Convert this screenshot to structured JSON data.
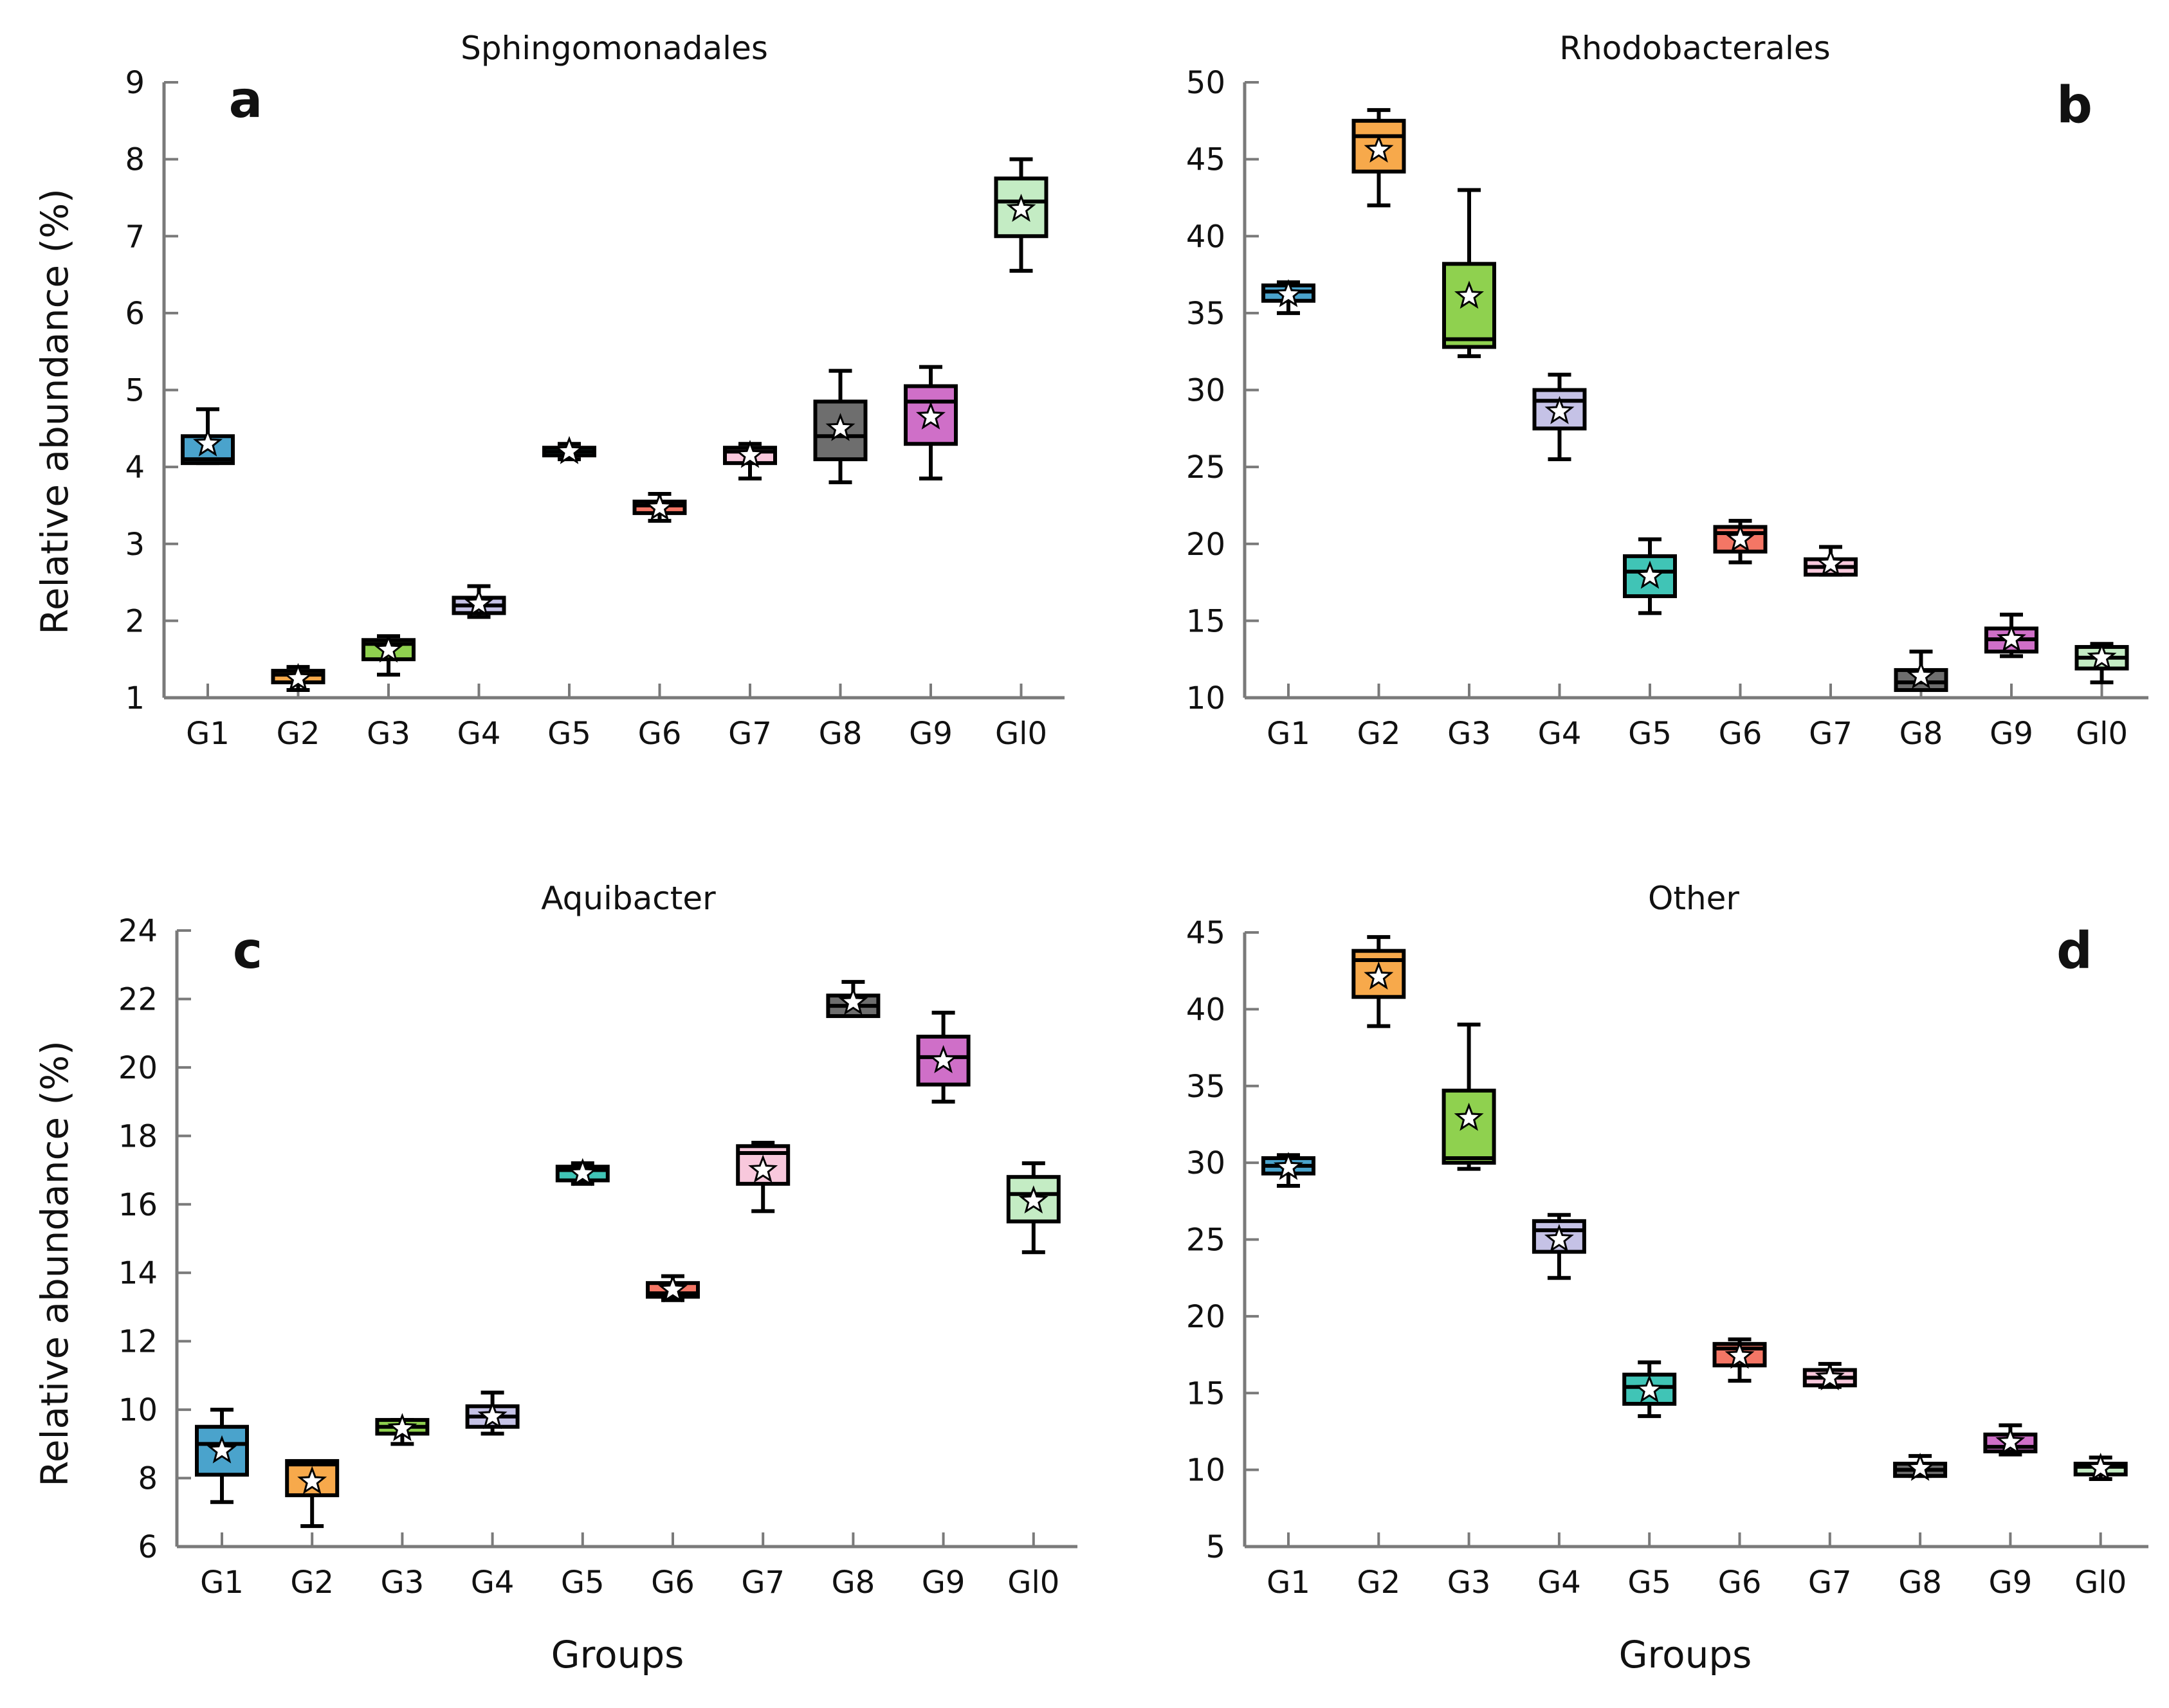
{
  "figure": {
    "group_colors": [
      "#4aa3cc",
      "#f7a94b",
      "#8fd14f",
      "#c5c2e6",
      "#40c4b6",
      "#f47665",
      "#f8c8dc",
      "#6e6e6e",
      "#cf6fc8",
      "#c4ecc4"
    ],
    "xlabel": "Groups",
    "ylabel": "Relative abundance (%)"
  },
  "chart_data": [
    {
      "type": "box",
      "panel": "a",
      "title": "Sphingomonadales",
      "xlabel": "",
      "ylabel": "Relative abundance (%)",
      "categories": [
        "G1",
        "G2",
        "G3",
        "G4",
        "G5",
        "G6",
        "G7",
        "G8",
        "G9",
        "Gl0"
      ],
      "ylim": [
        1,
        9
      ],
      "yticks": [
        1,
        2,
        3,
        4,
        5,
        6,
        7,
        8,
        9
      ],
      "boxes": [
        {
          "min": 4.05,
          "q1": 4.05,
          "median": 4.1,
          "q3": 4.4,
          "max": 4.75,
          "mean": 4.3
        },
        {
          "min": 1.1,
          "q1": 1.2,
          "median": 1.3,
          "q3": 1.35,
          "max": 1.4,
          "mean": 1.25
        },
        {
          "min": 1.3,
          "q1": 1.5,
          "median": 1.7,
          "q3": 1.75,
          "max": 1.8,
          "mean": 1.62
        },
        {
          "min": 2.05,
          "q1": 2.1,
          "median": 2.2,
          "q3": 2.3,
          "max": 2.45,
          "mean": 2.22
        },
        {
          "min": 4.1,
          "q1": 4.15,
          "median": 4.2,
          "q3": 4.25,
          "max": 4.3,
          "mean": 4.2
        },
        {
          "min": 3.3,
          "q1": 3.4,
          "median": 3.5,
          "q3": 3.55,
          "max": 3.65,
          "mean": 3.47
        },
        {
          "min": 3.85,
          "q1": 4.05,
          "median": 4.2,
          "q3": 4.25,
          "max": 4.3,
          "mean": 4.15
        },
        {
          "min": 3.8,
          "q1": 4.1,
          "median": 4.4,
          "q3": 4.85,
          "max": 5.25,
          "mean": 4.5
        },
        {
          "min": 3.85,
          "q1": 4.3,
          "median": 4.85,
          "q3": 5.05,
          "max": 5.3,
          "mean": 4.65
        },
        {
          "min": 6.55,
          "q1": 7.0,
          "median": 7.45,
          "q3": 7.75,
          "max": 8.0,
          "mean": 7.35
        }
      ]
    },
    {
      "type": "box",
      "panel": "b",
      "title": "Rhodobacterales",
      "xlabel": "",
      "ylabel": "",
      "categories": [
        "G1",
        "G2",
        "G3",
        "G4",
        "G5",
        "G6",
        "G7",
        "G8",
        "G9",
        "Gl0"
      ],
      "ylim": [
        10,
        50
      ],
      "yticks": [
        10,
        15,
        20,
        25,
        30,
        35,
        40,
        45,
        50
      ],
      "boxes": [
        {
          "min": 35.0,
          "q1": 35.8,
          "median": 36.4,
          "q3": 36.8,
          "max": 37.0,
          "mean": 36.2
        },
        {
          "min": 42.0,
          "q1": 44.2,
          "median": 46.5,
          "q3": 47.5,
          "max": 48.2,
          "mean": 45.6
        },
        {
          "min": 32.2,
          "q1": 32.8,
          "median": 33.3,
          "q3": 38.2,
          "max": 43.0,
          "mean": 36.1
        },
        {
          "min": 25.5,
          "q1": 27.5,
          "median": 29.3,
          "q3": 30.0,
          "max": 31.0,
          "mean": 28.6
        },
        {
          "min": 15.5,
          "q1": 16.6,
          "median": 18.2,
          "q3": 19.2,
          "max": 20.3,
          "mean": 17.9
        },
        {
          "min": 18.8,
          "q1": 19.5,
          "median": 20.7,
          "q3": 21.1,
          "max": 21.5,
          "mean": 20.3
        },
        {
          "min": 18.0,
          "q1": 18.0,
          "median": 18.5,
          "q3": 19.0,
          "max": 19.8,
          "mean": 18.7
        },
        {
          "min": 10.5,
          "q1": 10.5,
          "median": 11.0,
          "q3": 11.8,
          "max": 13.0,
          "mean": 11.4
        },
        {
          "min": 12.7,
          "q1": 13.0,
          "median": 13.8,
          "q3": 14.5,
          "max": 15.4,
          "mean": 13.8
        },
        {
          "min": 11.0,
          "q1": 11.9,
          "median": 12.6,
          "q3": 13.3,
          "max": 13.5,
          "mean": 12.6
        }
      ]
    },
    {
      "type": "box",
      "panel": "c",
      "title": "Aquibacter",
      "xlabel": "Groups",
      "ylabel": "Relative abundance (%)",
      "categories": [
        "G1",
        "G2",
        "G3",
        "G4",
        "G5",
        "G6",
        "G7",
        "G8",
        "G9",
        "Gl0"
      ],
      "ylim": [
        6,
        24
      ],
      "yticks": [
        6,
        8,
        10,
        12,
        14,
        16,
        18,
        20,
        22,
        24
      ],
      "boxes": [
        {
          "min": 7.3,
          "q1": 8.1,
          "median": 9.0,
          "q3": 9.5,
          "max": 10.0,
          "mean": 8.8
        },
        {
          "min": 6.6,
          "q1": 7.5,
          "median": 8.4,
          "q3": 8.5,
          "max": 8.5,
          "mean": 7.9
        },
        {
          "min": 9.0,
          "q1": 9.3,
          "median": 9.5,
          "q3": 9.7,
          "max": 9.7,
          "mean": 9.45
        },
        {
          "min": 9.3,
          "q1": 9.5,
          "median": 9.8,
          "q3": 10.1,
          "max": 10.5,
          "mean": 9.8
        },
        {
          "min": 16.6,
          "q1": 16.7,
          "median": 17.0,
          "q3": 17.1,
          "max": 17.2,
          "mean": 16.9
        },
        {
          "min": 13.2,
          "q1": 13.3,
          "median": 13.4,
          "q3": 13.7,
          "max": 13.9,
          "mean": 13.5
        },
        {
          "min": 15.8,
          "q1": 16.6,
          "median": 17.5,
          "q3": 17.7,
          "max": 17.8,
          "mean": 17.0
        },
        {
          "min": 21.5,
          "q1": 21.5,
          "median": 21.8,
          "q3": 22.1,
          "max": 22.5,
          "mean": 21.9
        },
        {
          "min": 19.0,
          "q1": 19.5,
          "median": 20.3,
          "q3": 20.9,
          "max": 21.6,
          "mean": 20.2
        },
        {
          "min": 14.6,
          "q1": 15.5,
          "median": 16.3,
          "q3": 16.8,
          "max": 17.2,
          "mean": 16.1
        }
      ]
    },
    {
      "type": "box",
      "panel": "d",
      "title": "Other",
      "xlabel": "Groups",
      "ylabel": "",
      "categories": [
        "G1",
        "G2",
        "G3",
        "G4",
        "G5",
        "G6",
        "G7",
        "G8",
        "G9",
        "Gl0"
      ],
      "ylim": [
        5,
        45
      ],
      "yticks": [
        5,
        10,
        15,
        20,
        25,
        30,
        35,
        40,
        45
      ],
      "boxes": [
        {
          "min": 28.5,
          "q1": 29.3,
          "median": 29.8,
          "q3": 30.3,
          "max": 30.5,
          "mean": 29.7
        },
        {
          "min": 38.9,
          "q1": 40.8,
          "median": 43.2,
          "q3": 43.8,
          "max": 44.7,
          "mean": 42.1
        },
        {
          "min": 29.6,
          "q1": 30.0,
          "median": 30.3,
          "q3": 34.7,
          "max": 39.0,
          "mean": 32.9
        },
        {
          "min": 22.5,
          "q1": 24.2,
          "median": 25.6,
          "q3": 26.2,
          "max": 26.6,
          "mean": 25.0
        },
        {
          "min": 13.5,
          "q1": 14.3,
          "median": 15.4,
          "q3": 16.2,
          "max": 17.0,
          "mean": 15.2
        },
        {
          "min": 15.8,
          "q1": 16.8,
          "median": 17.9,
          "q3": 18.2,
          "max": 18.5,
          "mean": 17.4
        },
        {
          "min": 15.4,
          "q1": 15.5,
          "median": 16.0,
          "q3": 16.5,
          "max": 16.9,
          "mean": 16.0
        },
        {
          "min": 9.6,
          "q1": 9.6,
          "median": 10.0,
          "q3": 10.4,
          "max": 10.9,
          "mean": 10.1
        },
        {
          "min": 11.0,
          "q1": 11.2,
          "median": 11.5,
          "q3": 12.3,
          "max": 12.9,
          "mean": 11.8
        },
        {
          "min": 9.4,
          "q1": 9.7,
          "median": 10.2,
          "q3": 10.4,
          "max": 10.8,
          "mean": 10.1
        }
      ]
    }
  ]
}
